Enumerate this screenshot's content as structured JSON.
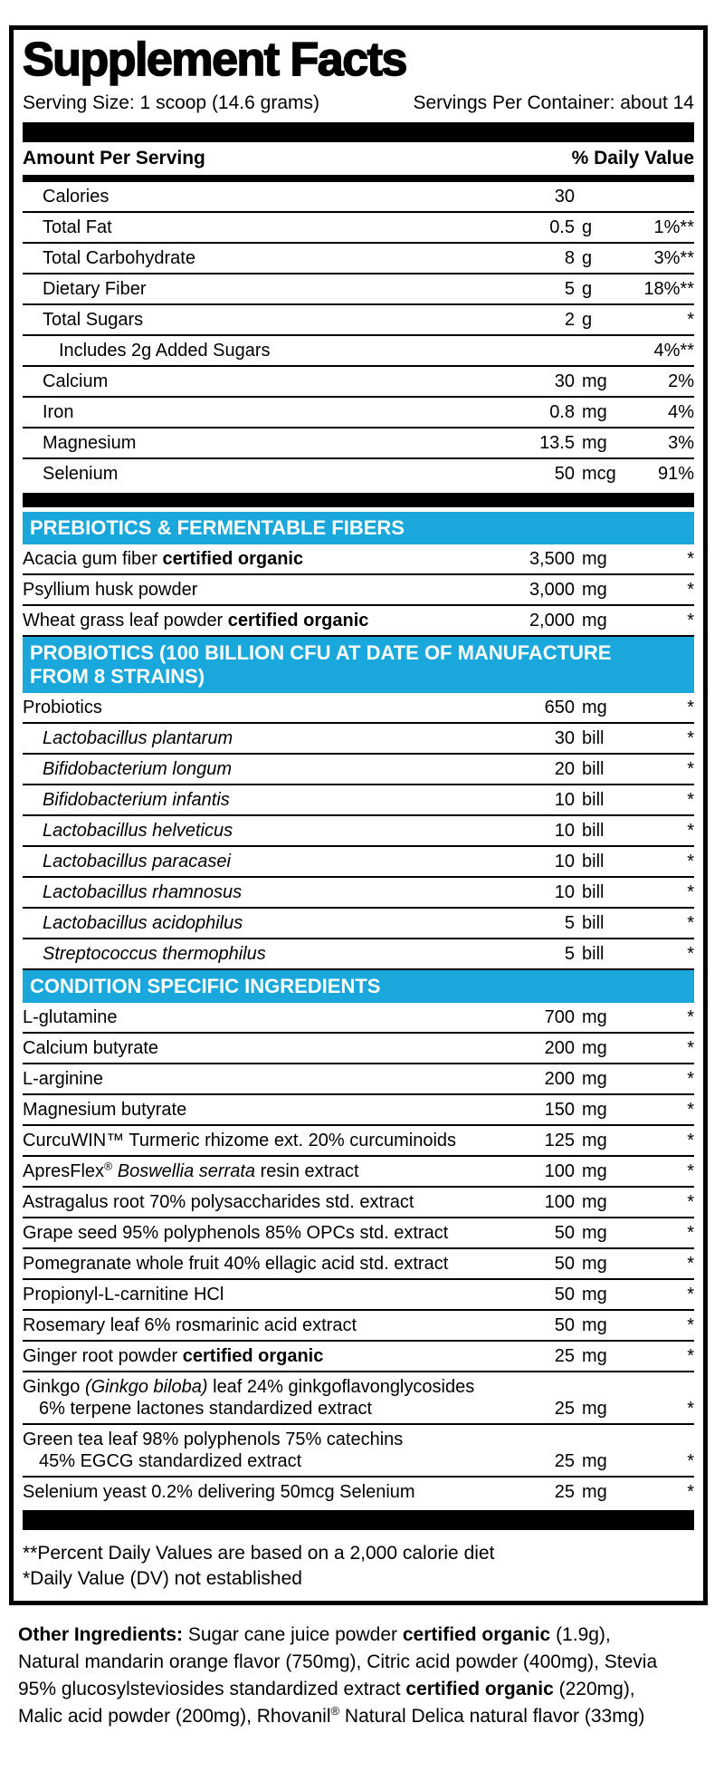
{
  "colors": {
    "section_header_bg": "#19A7DC",
    "section_header_text": "#FFFFFF",
    "rule_color": "#000000"
  },
  "panel": {
    "title": "Supplement Facts",
    "serving_size": "Serving Size: 1 scoop (14.6 grams)",
    "servings_per_container": "Servings Per Container: about 14",
    "amount_header": "Amount Per Serving",
    "dv_header": "% Daily Value",
    "footnotes": [
      "**Percent Daily Values are based on a 2,000 calorie diet",
      "*Daily Value (DV) not established"
    ]
  },
  "sections": [
    {
      "kind": "rows",
      "name": "nutrients",
      "rows": [
        {
          "ind": 1,
          "name": [
            {
              "t": "Calories"
            }
          ],
          "amt": "30",
          "unit": "",
          "dv": ""
        },
        {
          "ind": 1,
          "name": [
            {
              "t": "Total Fat"
            }
          ],
          "amt": "0.5",
          "unit": "g",
          "dv": "1%**"
        },
        {
          "ind": 1,
          "name": [
            {
              "t": "Total Carbohydrate"
            }
          ],
          "amt": "8",
          "unit": "g",
          "dv": "3%**"
        },
        {
          "ind": 1,
          "name": [
            {
              "t": "Dietary Fiber"
            }
          ],
          "amt": "5",
          "unit": "g",
          "dv": "18%**"
        },
        {
          "ind": 1,
          "name": [
            {
              "t": "Total Sugars"
            }
          ],
          "amt": "2",
          "unit": "g",
          "dv": "*"
        },
        {
          "ind": 2,
          "name": [
            {
              "t": "Includes 2g Added Sugars"
            }
          ],
          "amt": "",
          "unit": "",
          "dv": "4%**"
        },
        {
          "ind": 1,
          "name": [
            {
              "t": "Calcium"
            }
          ],
          "amt": "30",
          "unit": "mg",
          "dv": "2%"
        },
        {
          "ind": 1,
          "name": [
            {
              "t": "Iron"
            }
          ],
          "amt": "0.8",
          "unit": "mg",
          "dv": "4%"
        },
        {
          "ind": 1,
          "name": [
            {
              "t": "Magnesium"
            }
          ],
          "amt": "13.5",
          "unit": "mg",
          "dv": "3%"
        },
        {
          "ind": 1,
          "name": [
            {
              "t": "Selenium"
            }
          ],
          "amt": "50",
          "unit": "mcg",
          "dv": "91%"
        }
      ]
    },
    {
      "kind": "bar",
      "cls": "b16"
    },
    {
      "kind": "header",
      "name": "prebiotics-header",
      "ruled": false,
      "lines": [
        "PREBIOTICS & FERMENTABLE FIBERS"
      ]
    },
    {
      "kind": "rows",
      "name": "prebiotics",
      "rows": [
        {
          "ind": 0,
          "name": [
            {
              "t": "Acacia gum fiber "
            },
            {
              "t": "certified organic",
              "b": true
            }
          ],
          "amt": "3,500",
          "unit": "mg",
          "dv": "*"
        },
        {
          "ind": 0,
          "name": [
            {
              "t": "Psyllium husk powder"
            }
          ],
          "amt": "3,000",
          "unit": "mg",
          "dv": "*"
        },
        {
          "ind": 0,
          "name": [
            {
              "t": "Wheat grass leaf powder "
            },
            {
              "t": "certified organic",
              "b": true
            }
          ],
          "amt": "2,000",
          "unit": "mg",
          "dv": "*"
        }
      ]
    },
    {
      "kind": "header",
      "name": "probiotics-header",
      "ruled": true,
      "lines": [
        "PROBIOTICS (100 BILLION CFU AT DATE OF MANUFACTURE",
        "FROM 8 STRAINS)"
      ]
    },
    {
      "kind": "rows",
      "name": "probiotics",
      "rows": [
        {
          "ind": 0,
          "name": [
            {
              "t": "Probiotics"
            }
          ],
          "amt": "650",
          "unit": "mg",
          "dv": "*"
        },
        {
          "ind": 1,
          "name": [
            {
              "t": "Lactobacillus plantarum",
              "i": true
            }
          ],
          "amt": "30",
          "unit": "bill",
          "dv": "*"
        },
        {
          "ind": 1,
          "name": [
            {
              "t": "Bifidobacterium longum",
              "i": true
            }
          ],
          "amt": "20",
          "unit": "bill",
          "dv": "*"
        },
        {
          "ind": 1,
          "name": [
            {
              "t": "Bifidobacterium infantis",
              "i": true
            }
          ],
          "amt": "10",
          "unit": "bill",
          "dv": "*"
        },
        {
          "ind": 1,
          "name": [
            {
              "t": "Lactobacillus helveticus",
              "i": true
            }
          ],
          "amt": "10",
          "unit": "bill",
          "dv": "*"
        },
        {
          "ind": 1,
          "name": [
            {
              "t": "Lactobacillus paracasei",
              "i": true
            }
          ],
          "amt": "10",
          "unit": "bill",
          "dv": "*"
        },
        {
          "ind": 1,
          "name": [
            {
              "t": "Lactobacillus rhamnosus",
              "i": true
            }
          ],
          "amt": "10",
          "unit": "bill",
          "dv": "*"
        },
        {
          "ind": 1,
          "name": [
            {
              "t": "Lactobacillus acidophilus",
              "i": true
            }
          ],
          "amt": "5",
          "unit": "bill",
          "dv": "*"
        },
        {
          "ind": 1,
          "name": [
            {
              "t": "Streptococcus thermophilus",
              "i": true
            }
          ],
          "amt": "5",
          "unit": "bill",
          "dv": "*"
        }
      ]
    },
    {
      "kind": "header",
      "name": "condition-specific-header",
      "ruled": true,
      "lines": [
        "CONDITION SPECIFIC INGREDIENTS"
      ]
    },
    {
      "kind": "rows",
      "name": "condition-specific",
      "rows": [
        {
          "ind": 0,
          "name": [
            {
              "t": "L-glutamine"
            }
          ],
          "amt": "700",
          "unit": "mg",
          "dv": "*"
        },
        {
          "ind": 0,
          "name": [
            {
              "t": "Calcium butyrate"
            }
          ],
          "amt": "200",
          "unit": "mg",
          "dv": "*"
        },
        {
          "ind": 0,
          "name": [
            {
              "t": "L-arginine"
            }
          ],
          "amt": "200",
          "unit": "mg",
          "dv": "*"
        },
        {
          "ind": 0,
          "name": [
            {
              "t": "Magnesium butyrate"
            }
          ],
          "amt": "150",
          "unit": "mg",
          "dv": "*"
        },
        {
          "ind": 0,
          "name": [
            {
              "t": "CurcuWIN™ Turmeric rhizome ext. 20% curcuminoids"
            }
          ],
          "amt": "125",
          "unit": "mg",
          "dv": "*"
        },
        {
          "ind": 0,
          "name": [
            {
              "t": "ApresFlex"
            },
            {
              "t": "®",
              "sup": true
            },
            {
              "t": " "
            },
            {
              "t": "Boswellia serrata",
              "i": true
            },
            {
              "t": " resin extract"
            }
          ],
          "amt": "100",
          "unit": "mg",
          "dv": "*"
        },
        {
          "ind": 0,
          "name": [
            {
              "t": "Astragalus root 70% polysaccharides std. extract"
            }
          ],
          "amt": "100",
          "unit": "mg",
          "dv": "*"
        },
        {
          "ind": 0,
          "name": [
            {
              "t": "Grape seed 95% polyphenols 85% OPCs std. extract"
            }
          ],
          "amt": "50",
          "unit": "mg",
          "dv": "*"
        },
        {
          "ind": 0,
          "name": [
            {
              "t": "Pomegranate whole fruit 40% ellagic acid std. extract"
            }
          ],
          "amt": "50",
          "unit": "mg",
          "dv": "*"
        },
        {
          "ind": 0,
          "name": [
            {
              "t": "Propionyl-L-carnitine HCl"
            }
          ],
          "amt": "50",
          "unit": "mg",
          "dv": "*"
        },
        {
          "ind": 0,
          "name": [
            {
              "t": "Rosemary leaf 6% rosmarinic acid extract"
            }
          ],
          "amt": "50",
          "unit": "mg",
          "dv": "*"
        },
        {
          "ind": 0,
          "name": [
            {
              "t": "Ginger root powder "
            },
            {
              "t": "certified organic",
              "b": true
            }
          ],
          "amt": "25",
          "unit": "mg",
          "dv": "*"
        },
        {
          "two": true,
          "line1": [
            {
              "t": "Ginkgo "
            },
            {
              "t": "(Ginkgo biloba)",
              "i": true
            },
            {
              "t": " leaf 24% ginkgoflavonglycosides"
            }
          ],
          "line2": [
            {
              "t": "6% terpene lactones standardized extract"
            }
          ],
          "amt": "25",
          "unit": "mg",
          "dv": "*"
        },
        {
          "two": true,
          "line1": [
            {
              "t": "Green tea leaf 98% polyphenols 75% catechins"
            }
          ],
          "line2": [
            {
              "t": "45% EGCG standardized extract"
            }
          ],
          "amt": "25",
          "unit": "mg",
          "dv": "*"
        },
        {
          "ind": 0,
          "name": [
            {
              "t": "Selenium yeast 0.2% delivering 50mcg Selenium"
            }
          ],
          "amt": "25",
          "unit": "mg",
          "dv": "*"
        }
      ]
    },
    {
      "kind": "bar",
      "cls": "b22f"
    },
    {
      "kind": "footnotes"
    }
  ],
  "other_ingredients": {
    "lines": [
      [
        {
          "t": "Other Ingredients: ",
          "b": true
        },
        {
          "t": "Sugar cane juice powder "
        },
        {
          "t": "certified organic",
          "b": true
        },
        {
          "t": " (1.9g),"
        }
      ],
      [
        {
          "t": "Natural mandarin orange flavor (750mg), Citric acid powder (400mg), Stevia"
        }
      ],
      [
        {
          "t": "95% glucosylsteviosides standardized extract "
        },
        {
          "t": "certified organic",
          "b": true
        },
        {
          "t": " (220mg),"
        }
      ],
      [
        {
          "t": "Malic acid powder (200mg), Rhovanil"
        },
        {
          "t": "®",
          "sup": true
        },
        {
          "t": " Natural Delica natural flavor (33mg)"
        }
      ]
    ]
  }
}
